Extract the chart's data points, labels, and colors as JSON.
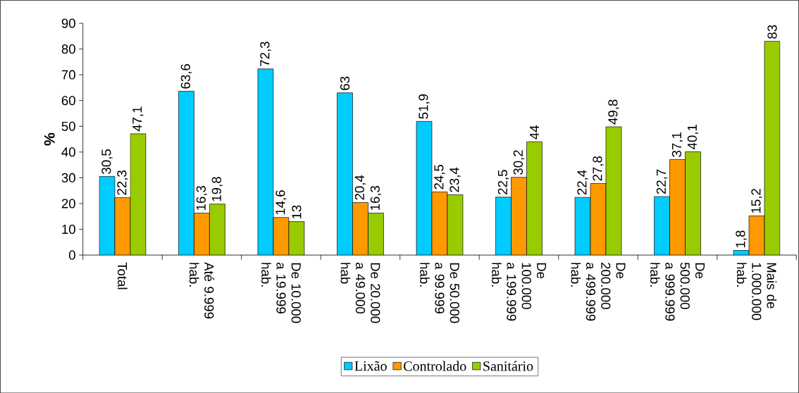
{
  "chart_data": {
    "type": "bar",
    "ylabel": "%",
    "categories": [
      "Total",
      "Até 9.999 hab.",
      "De 10.000 a 19.999 hab.",
      "De 20.000 a 49.000 hab",
      "De 50.000 a 99.999 hab.",
      "De 100.000 a 199.999 hab.",
      "De 200.000 a 499.999 hab.",
      "De 500.000 a 999.999 hab.",
      "Mais de 1.000.000 hab."
    ],
    "series": [
      {
        "name": "Lixão",
        "color": "#00ccff",
        "values": [
          30.5,
          63.6,
          72.3,
          63,
          51.9,
          22.5,
          22.4,
          22.7,
          1.8
        ],
        "value_labels": [
          "30,5",
          "63,6",
          "72,3",
          "63",
          "51,9",
          "22,5",
          "22,4",
          "22,7",
          "1,8"
        ]
      },
      {
        "name": "Controlado",
        "color": "#ff9900",
        "values": [
          22.3,
          16.3,
          14.6,
          20.4,
          24.5,
          30.2,
          27.8,
          37.1,
          15.2
        ],
        "value_labels": [
          "22,3",
          "16,3",
          "14,6",
          "20,4",
          "24,5",
          "30,2",
          "27,8",
          "37,1",
          "15,2"
        ]
      },
      {
        "name": "Sanitário",
        "color": "#99cc00",
        "values": [
          47.1,
          19.8,
          13,
          16.3,
          23.4,
          44,
          49.8,
          40.1,
          83
        ],
        "value_labels": [
          "47,1",
          "19,8",
          "13",
          "16,3",
          "23,4",
          "44",
          "49,8",
          "40,1",
          "83"
        ]
      }
    ],
    "ylim": [
      0,
      90
    ],
    "yticks": [
      0,
      10,
      20,
      30,
      40,
      50,
      60,
      70,
      80,
      90
    ],
    "grid": false,
    "legend": "bottom"
  }
}
